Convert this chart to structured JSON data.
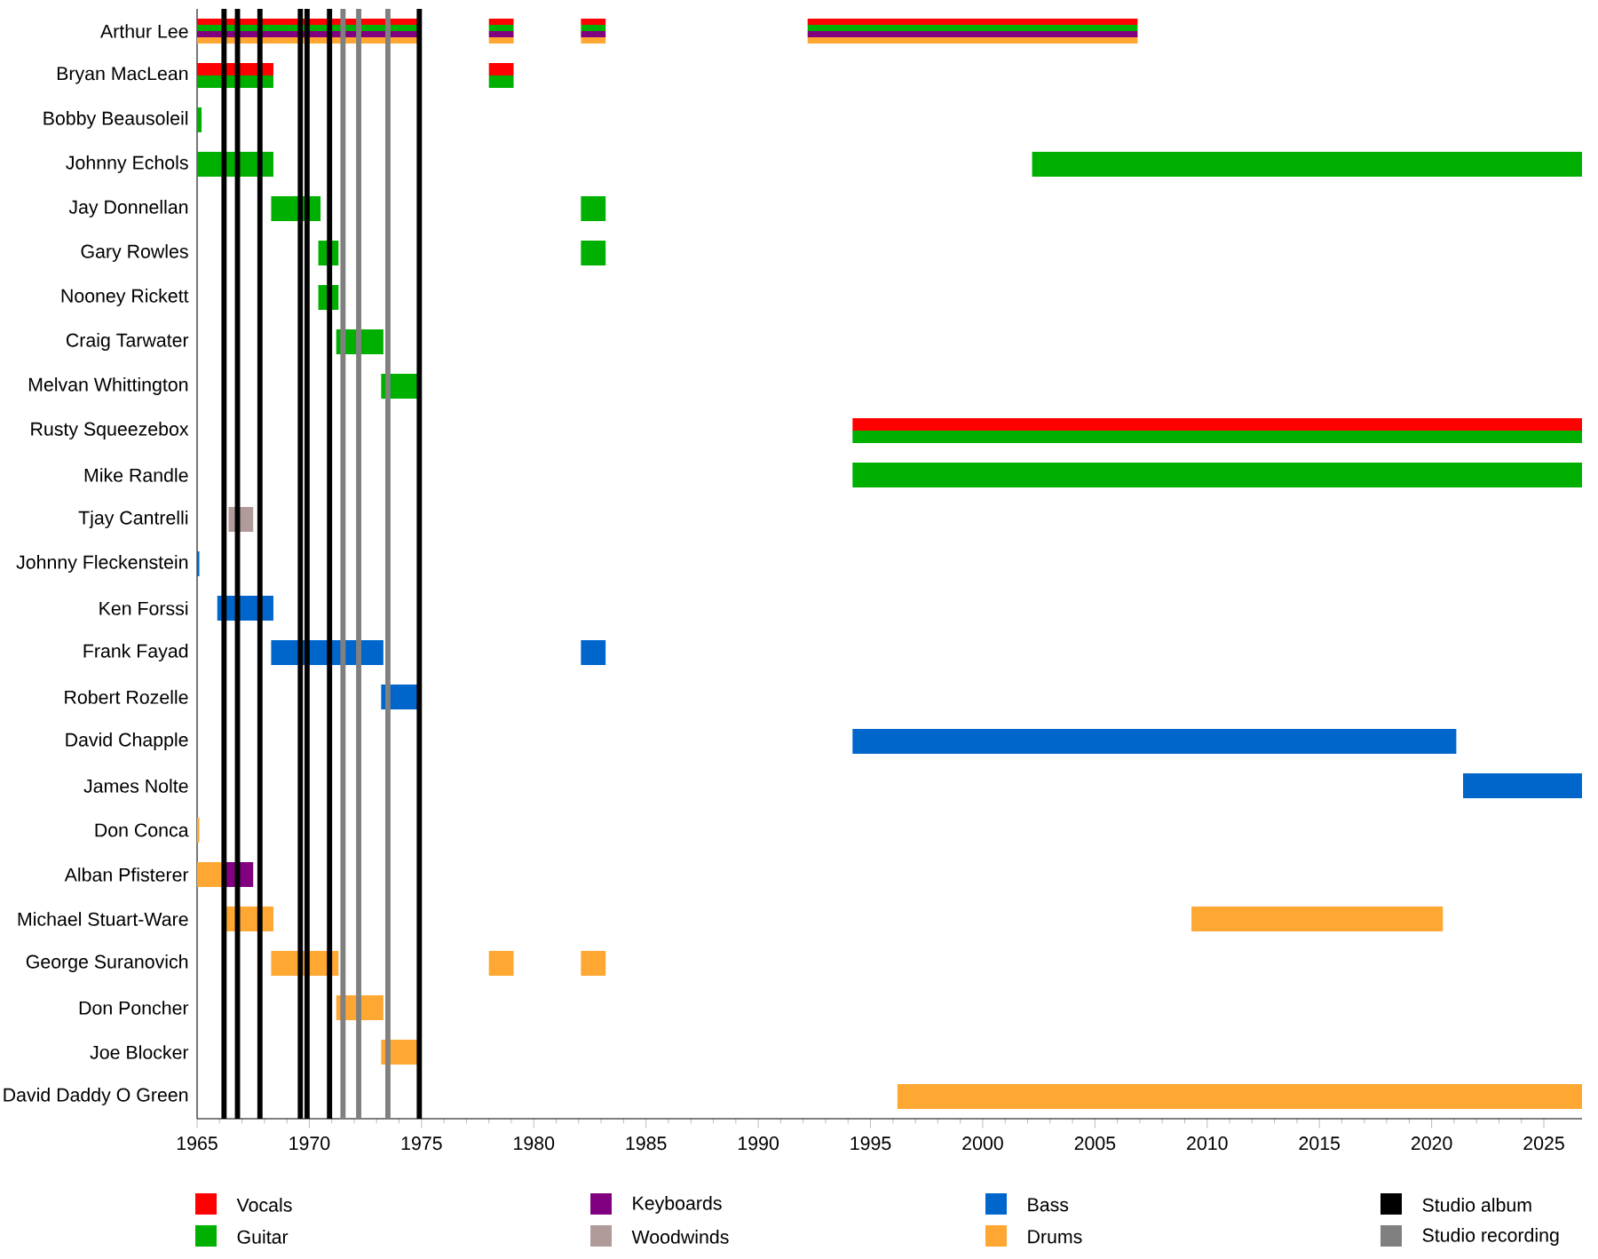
{
  "chart_data": {
    "type": "bar",
    "orientation": "horizontal",
    "categories": [
      "Arthur Lee",
      "Bryan MacLean",
      "Bobby Beausoleil",
      "Johnny Echols",
      "Jay Donnellan",
      "Gary Rowles",
      "Nooney Rickett",
      "Craig Tarwater",
      "Melvan Whittington",
      "Rusty Squeezebox",
      "Mike Randle",
      "Tjay Cantrelli",
      "Johnny Fleckenstein",
      "Ken Forssi",
      "Frank Fayad",
      "Robert Rozelle",
      "David Chapple",
      "James Nolte",
      "Don Conca",
      "Alban Pfisterer",
      "Michael Stuart-Ware",
      "George Suranovich",
      "Don Poncher",
      "Joe Blocker",
      "David Daddy O Green"
    ],
    "series": [
      {
        "name": "Vocals",
        "color": "#ff0000",
        "base": [
          1965,
          1965,
          null,
          null,
          null,
          null,
          null,
          null,
          null,
          1994.2,
          null,
          null,
          null,
          null,
          null,
          null,
          null,
          null,
          null,
          null,
          null,
          null,
          null,
          null,
          null
        ],
        "values": [
          10.0,
          3.4,
          null,
          null,
          null,
          null,
          null,
          null,
          null,
          32.5,
          null,
          null,
          null,
          null,
          null,
          null,
          null,
          null,
          null,
          null,
          null,
          null,
          null,
          null,
          null
        ]
      },
      {
        "name": "Guitar",
        "color": "#00b000",
        "base": [
          1965,
          1965,
          1965,
          1965,
          1968.3,
          1970.4,
          1970.4,
          1971.2,
          1973.2,
          1994.2,
          1994.2,
          null,
          null,
          null,
          null,
          null,
          null,
          null,
          null,
          null,
          null,
          null,
          null,
          null,
          null
        ],
        "values": [
          10.0,
          3.4,
          0.2,
          3.4,
          2.2,
          0.9,
          0.9,
          2.1,
          1.8,
          32.5,
          32.5,
          null,
          null,
          null,
          null,
          null,
          null,
          null,
          null,
          null,
          null,
          null,
          null,
          null,
          null
        ]
      },
      {
        "name": "Keyboards",
        "color": "#800080",
        "base": [
          1965,
          null,
          null,
          null,
          null,
          null,
          null,
          null,
          null,
          null,
          null,
          null,
          null,
          null,
          null,
          null,
          null,
          null,
          null,
          1966.3,
          null,
          null,
          null,
          null,
          null
        ],
        "values": [
          10.0,
          null,
          null,
          null,
          null,
          null,
          null,
          null,
          null,
          null,
          null,
          null,
          null,
          null,
          null,
          null,
          null,
          null,
          null,
          1.2,
          null,
          null,
          null,
          null,
          null
        ]
      },
      {
        "name": "Woodwinds",
        "color": "#b09a9a",
        "base": [
          null,
          null,
          null,
          null,
          null,
          null,
          null,
          null,
          null,
          null,
          null,
          1966.4,
          null,
          null,
          null,
          null,
          null,
          null,
          null,
          null,
          null,
          null,
          null,
          null,
          null
        ],
        "values": [
          null,
          null,
          null,
          null,
          null,
          null,
          null,
          null,
          null,
          null,
          null,
          1.1,
          null,
          null,
          null,
          null,
          null,
          null,
          null,
          null,
          null,
          null,
          null,
          null,
          null
        ]
      },
      {
        "name": "Bass",
        "color": "#0066cc",
        "base": [
          null,
          null,
          null,
          null,
          null,
          null,
          null,
          null,
          null,
          null,
          null,
          null,
          1965,
          1965.9,
          1968.3,
          1973.2,
          1994.2,
          2021.4,
          null,
          null,
          null,
          null,
          null,
          null,
          null
        ],
        "values": [
          null,
          null,
          null,
          null,
          null,
          null,
          null,
          null,
          null,
          null,
          null,
          null,
          0.1,
          2.5,
          5.0,
          1.8,
          26.9,
          5.3,
          null,
          null,
          null,
          null,
          null,
          null,
          null
        ]
      },
      {
        "name": "Drums",
        "color": "#ffa733",
        "base": [
          1965,
          null,
          null,
          null,
          null,
          null,
          null,
          null,
          null,
          null,
          null,
          null,
          null,
          null,
          null,
          null,
          null,
          null,
          1965,
          1965,
          1966.3,
          1968.3,
          1971.2,
          1973.2,
          1996.2
        ],
        "values": [
          10.0,
          null,
          null,
          null,
          null,
          null,
          null,
          null,
          null,
          null,
          null,
          null,
          null,
          null,
          null,
          null,
          null,
          null,
          0.1,
          1.3,
          2.1,
          3.0,
          2.1,
          1.8,
          30.5
        ]
      },
      {
        "color": "#ff0000",
        "base": [
          1978.0,
          1978.0,
          null,
          null,
          null,
          null,
          null,
          null,
          null,
          null,
          null,
          null,
          null,
          null,
          null,
          null,
          null,
          null,
          null,
          null,
          null,
          null,
          null,
          null,
          null
        ],
        "values": [
          1.1,
          1.1,
          null,
          null,
          null,
          null,
          null,
          null,
          null,
          null,
          null,
          null,
          null,
          null,
          null,
          null,
          null,
          null,
          null,
          null,
          null,
          null,
          null,
          null,
          null
        ]
      },
      {
        "color": "#00b000",
        "base": [
          1978.0,
          1978.0,
          null,
          2002.2,
          1982.1,
          1982.1,
          null,
          null,
          null,
          null,
          null,
          null,
          null,
          null,
          null,
          null,
          null,
          null,
          null,
          null,
          null,
          null,
          null,
          null,
          null
        ],
        "values": [
          1.1,
          1.1,
          null,
          24.5,
          1.1,
          1.1,
          null,
          null,
          null,
          null,
          null,
          null,
          null,
          null,
          null,
          null,
          null,
          null,
          null,
          null,
          null,
          null,
          null,
          null,
          null
        ]
      },
      {
        "color": "#800080",
        "base": [
          1978.0,
          null,
          null,
          null,
          null,
          null,
          null,
          null,
          null,
          null,
          null,
          null,
          null,
          null,
          null,
          null,
          null,
          null,
          null,
          null,
          null,
          null,
          null,
          null,
          null
        ],
        "values": [
          1.1,
          null,
          null,
          null,
          null,
          null,
          null,
          null,
          null,
          null,
          null,
          null,
          null,
          null,
          null,
          null,
          null,
          null,
          null,
          null,
          null,
          null,
          null,
          null,
          null
        ]
      },
      {
        "color": "#0066cc",
        "base": [
          null,
          null,
          null,
          null,
          null,
          null,
          null,
          null,
          null,
          null,
          null,
          null,
          null,
          null,
          1982.1,
          null,
          null,
          null,
          null,
          null,
          null,
          null,
          null,
          null,
          null
        ],
        "values": [
          null,
          null,
          null,
          null,
          null,
          null,
          null,
          null,
          null,
          null,
          null,
          null,
          null,
          null,
          1.1,
          null,
          null,
          null,
          null,
          null,
          null,
          null,
          null,
          null,
          null
        ]
      },
      {
        "color": "#ffa733",
        "base": [
          1978.0,
          null,
          null,
          null,
          null,
          null,
          null,
          null,
          null,
          null,
          null,
          null,
          null,
          null,
          null,
          null,
          null,
          null,
          null,
          null,
          2009.3,
          1978.0,
          null,
          null,
          null
        ],
        "values": [
          1.1,
          null,
          null,
          null,
          null,
          null,
          null,
          null,
          null,
          null,
          null,
          null,
          null,
          null,
          null,
          null,
          null,
          null,
          null,
          null,
          11.2,
          1.1,
          null,
          null,
          null
        ]
      },
      {
        "color": "#ff0000",
        "base": [
          1982.1,
          null,
          null,
          null,
          null,
          null,
          null,
          null,
          null,
          null,
          null,
          null,
          null,
          null,
          null,
          null,
          null,
          null,
          null,
          null,
          null,
          null,
          null,
          null,
          null
        ],
        "values": [
          1.1,
          null,
          null,
          null,
          null,
          null,
          null,
          null,
          null,
          null,
          null,
          null,
          null,
          null,
          null,
          null,
          null,
          null,
          null,
          null,
          null,
          null,
          null,
          null,
          null
        ]
      },
      {
        "color": "#00b000",
        "base": [
          1982.1,
          null,
          null,
          null,
          null,
          null,
          null,
          null,
          null,
          null,
          null,
          null,
          null,
          null,
          null,
          null,
          null,
          null,
          null,
          null,
          null,
          null,
          null,
          null,
          null
        ],
        "values": [
          1.1,
          null,
          null,
          null,
          null,
          null,
          null,
          null,
          null,
          null,
          null,
          null,
          null,
          null,
          null,
          null,
          null,
          null,
          null,
          null,
          null,
          null,
          null,
          null,
          null
        ]
      },
      {
        "color": "#800080",
        "base": [
          1982.1,
          null,
          null,
          null,
          null,
          null,
          null,
          null,
          null,
          null,
          null,
          null,
          null,
          null,
          null,
          null,
          null,
          null,
          null,
          null,
          null,
          null,
          null,
          null,
          null
        ],
        "values": [
          1.1,
          null,
          null,
          null,
          null,
          null,
          null,
          null,
          null,
          null,
          null,
          null,
          null,
          null,
          null,
          null,
          null,
          null,
          null,
          null,
          null,
          null,
          null,
          null,
          null
        ]
      },
      {
        "color": "#ffa733",
        "base": [
          1982.1,
          null,
          null,
          null,
          null,
          null,
          null,
          null,
          null,
          null,
          null,
          null,
          null,
          null,
          null,
          null,
          null,
          null,
          null,
          null,
          null,
          1982.1,
          null,
          null,
          null
        ],
        "values": [
          1.1,
          null,
          null,
          null,
          null,
          null,
          null,
          null,
          null,
          null,
          null,
          null,
          null,
          null,
          null,
          null,
          null,
          null,
          null,
          null,
          null,
          1.1,
          null,
          null,
          null
        ]
      },
      {
        "color": "#ff0000",
        "base": [
          1992.2,
          null,
          null,
          null,
          null,
          null,
          null,
          null,
          null,
          null,
          null,
          null,
          null,
          null,
          null,
          null,
          null,
          null,
          null,
          null,
          null,
          null,
          null,
          null,
          null
        ],
        "values": [
          14.7,
          null,
          null,
          null,
          null,
          null,
          null,
          null,
          null,
          null,
          null,
          null,
          null,
          null,
          null,
          null,
          null,
          null,
          null,
          null,
          null,
          null,
          null,
          null,
          null
        ]
      },
      {
        "color": "#00b000",
        "base": [
          1992.2,
          null,
          null,
          null,
          null,
          null,
          null,
          null,
          null,
          null,
          null,
          null,
          null,
          null,
          null,
          null,
          null,
          null,
          null,
          null,
          null,
          null,
          null,
          null,
          null
        ],
        "values": [
          14.7,
          null,
          null,
          null,
          null,
          null,
          null,
          null,
          null,
          null,
          null,
          null,
          null,
          null,
          null,
          null,
          null,
          null,
          null,
          null,
          null,
          null,
          null,
          null,
          null
        ]
      },
      {
        "color": "#800080",
        "base": [
          1992.2,
          null,
          null,
          null,
          null,
          null,
          null,
          null,
          null,
          null,
          null,
          null,
          null,
          null,
          null,
          null,
          null,
          null,
          null,
          null,
          null,
          null,
          null,
          null,
          null
        ],
        "values": [
          14.7,
          null,
          null,
          null,
          null,
          null,
          null,
          null,
          null,
          null,
          null,
          null,
          null,
          null,
          null,
          null,
          null,
          null,
          null,
          null,
          null,
          null,
          null,
          null,
          null
        ]
      },
      {
        "color": "#ffa733",
        "base": [
          1992.2,
          null,
          null,
          null,
          null,
          null,
          null,
          null,
          null,
          null,
          null,
          null,
          null,
          null,
          null,
          null,
          null,
          null,
          null,
          null,
          null,
          null,
          null,
          null,
          null
        ],
        "values": [
          14.7,
          null,
          null,
          null,
          null,
          null,
          null,
          null,
          null,
          null,
          null,
          null,
          null,
          null,
          null,
          null,
          null,
          null,
          null,
          null,
          null,
          null,
          null,
          null,
          null
        ]
      }
    ],
    "xlim": [
      1965,
      2026.7
    ],
    "xticks": [
      1965,
      1970,
      1975,
      1980,
      1985,
      1990,
      1995,
      2000,
      2005,
      2010,
      2015,
      2020,
      2025
    ],
    "ref_lines": [
      {
        "axis": "x",
        "value": 1966.2,
        "label": "Studio album",
        "color": "#000000"
      },
      {
        "axis": "x",
        "value": 1966.8,
        "color": "#000000"
      },
      {
        "axis": "x",
        "value": 1967.8,
        "color": "#000000"
      },
      {
        "axis": "x",
        "value": 1969.6,
        "color": "#000000"
      },
      {
        "axis": "x",
        "value": 1969.9,
        "color": "#000000"
      },
      {
        "axis": "x",
        "value": 1970.9,
        "color": "#000000"
      },
      {
        "axis": "x",
        "value": 1974.9,
        "color": "#000000"
      },
      {
        "axis": "x",
        "value": 1971.5,
        "label": "Studio recording",
        "color": "#808080"
      },
      {
        "axis": "x",
        "value": 1972.2,
        "color": "#808080"
      },
      {
        "axis": "x",
        "value": 1973.5,
        "color": "#808080"
      }
    ],
    "legend": "bottom"
  }
}
